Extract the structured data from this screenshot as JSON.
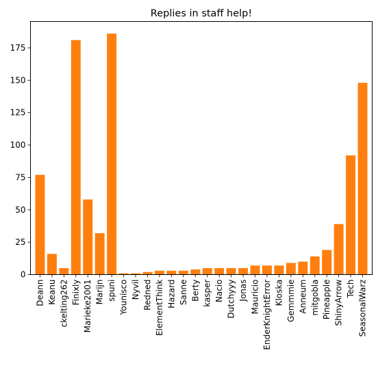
{
  "chart_data": {
    "type": "bar",
    "title": "Replies in staff help!",
    "xlabel": "",
    "ylabel": "",
    "categories": [
      "Deann",
      "Keanu",
      "ckelting262",
      "Finixly",
      "Marieke2001",
      "Marijn",
      "spuni",
      "Younisco",
      "Nyvil",
      "Redned",
      "ElementThink",
      "Hazard",
      "Sanne",
      "Berty",
      "kasper",
      "Nacio",
      "Dutchyyy",
      "Jonas",
      "Mauricio",
      "EnderKnightError",
      "Kloska",
      "Gemmmie",
      "Anneum",
      "mitgobla",
      "Pineapple",
      "ShinyArrow",
      "Tech",
      "SeasonalWarz"
    ],
    "values": [
      77,
      16,
      5,
      181,
      58,
      32,
      186,
      1,
      1,
      2,
      3,
      3,
      3,
      4,
      5,
      5,
      5,
      5,
      7,
      7,
      7,
      9,
      10,
      14,
      19,
      39,
      92,
      148
    ],
    "ylim": [
      0,
      195.3
    ],
    "yticks": [
      0,
      25,
      50,
      75,
      100,
      125,
      150,
      175
    ],
    "bar_color": "#ff7f0e",
    "grid": false,
    "legend": "none"
  }
}
